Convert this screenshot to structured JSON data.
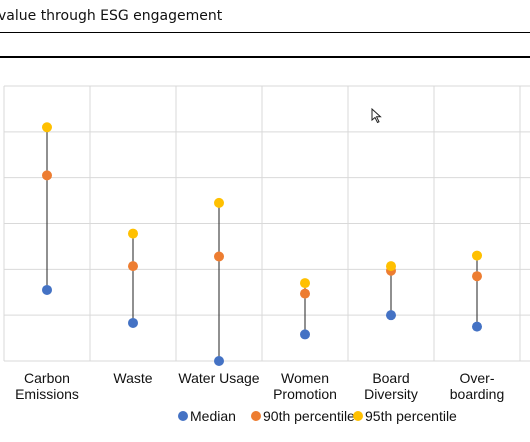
{
  "header": {
    "title": "value through ESG engagement"
  },
  "chart_data": {
    "type": "dot range",
    "categories": [
      [
        "Carbon",
        "Emissions"
      ],
      [
        "Waste"
      ],
      [
        "Water Usage"
      ],
      [
        "Women",
        "Promotion"
      ],
      [
        "Board",
        "Diversity"
      ],
      [
        "Over-",
        "boarding"
      ]
    ],
    "ylim": [
      0,
      6
    ],
    "grid": true,
    "legend_position": "bottom",
    "series": [
      {
        "name": "Median",
        "color": "#4472C4",
        "values": [
          1.55,
          0.83,
          0.0,
          0.58,
          1.0,
          0.75
        ]
      },
      {
        "name": "90th percentile",
        "color": "#ED7D31",
        "values": [
          4.05,
          2.07,
          2.28,
          1.47,
          1.97,
          1.85
        ]
      },
      {
        "name": "95th percentile",
        "color": "#FFC000",
        "values": [
          5.1,
          2.78,
          3.45,
          1.7,
          2.07,
          2.3
        ]
      }
    ]
  },
  "icons": {
    "cursor": "mouse-pointer-icon"
  }
}
